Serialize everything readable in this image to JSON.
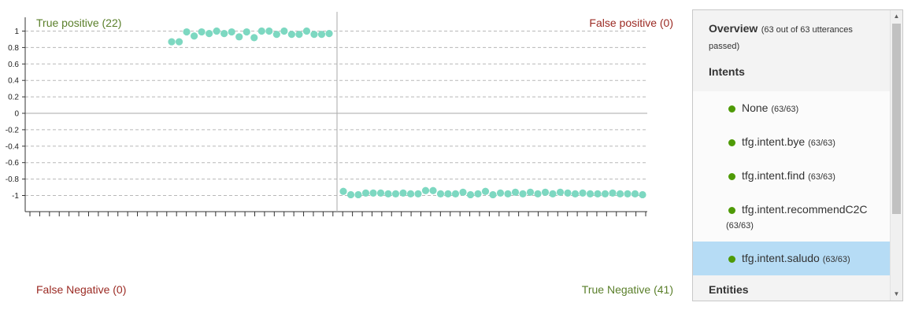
{
  "quadrants": {
    "true_positive": "True positive (22)",
    "false_positive": "False positive (0)",
    "false_negative": "False Negative (0)",
    "true_negative": "True Negative (41)"
  },
  "chart_data": {
    "type": "scatter",
    "title": "",
    "xlabel": "",
    "ylabel": "",
    "ylim": [
      -1.2,
      1.2
    ],
    "y_ticks": [
      "1",
      "0.8",
      "0.6",
      "0.4",
      "0.2",
      "0",
      "-0.2",
      "-0.4",
      "-0.6",
      "-0.8",
      "-1"
    ],
    "grid": true,
    "point_color": "#7dd8c1",
    "series": [
      {
        "values": [
          0.87,
          0.87,
          0.99,
          0.94,
          0.99,
          0.97,
          1.0,
          0.97,
          0.99,
          0.93,
          0.99,
          0.92,
          1.0,
          1.0,
          0.96,
          1.0,
          0.96,
          0.96,
          1.0,
          0.96,
          0.96,
          0.97
        ]
      },
      {
        "values": [
          -0.95,
          -0.99,
          -0.99,
          -0.97,
          -0.97,
          -0.97,
          -0.98,
          -0.98,
          -0.97,
          -0.98,
          -0.98,
          -0.94,
          -0.94,
          -0.98,
          -0.98,
          -0.98,
          -0.96,
          -0.99,
          -0.98,
          -0.95,
          -0.99,
          -0.97,
          -0.98,
          -0.96,
          -0.98,
          -0.96,
          -0.98,
          -0.96,
          -0.98,
          -0.96,
          -0.97,
          -0.98,
          -0.97,
          -0.98,
          -0.98,
          -0.98,
          -0.97,
          -0.98,
          -0.98,
          -0.98,
          -0.99
        ]
      }
    ]
  },
  "panel": {
    "overview_title": "Overview",
    "overview_detail": "(63 out of 63 utterances passed)",
    "intents_heading": "Intents",
    "intents": [
      {
        "label": "None",
        "count": "(63/63)"
      },
      {
        "label": "tfg.intent.bye",
        "count": "(63/63)"
      },
      {
        "label": "tfg.intent.find",
        "count": "(63/63)"
      },
      {
        "label": "tfg.intent.recommendC2C",
        "count": "(63/63)"
      },
      {
        "label": "tfg.intent.saludo",
        "count": "(63/63)"
      }
    ],
    "entities_heading": "Entities",
    "status_color": "#4e9a06",
    "selected_index": 4
  }
}
